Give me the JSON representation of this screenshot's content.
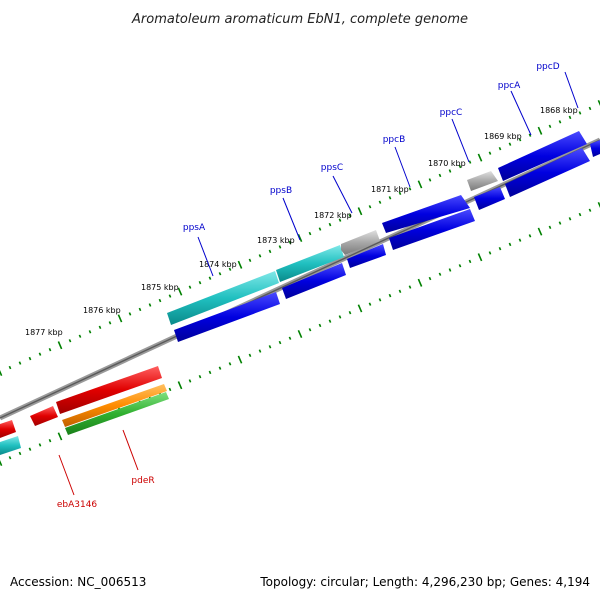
{
  "title": "Aromatoleum aromaticum EbN1, complete genome",
  "footer": {
    "accession": "Accession: NC_006513",
    "summary": "Topology: circular; Length: 4,296,230 bp; Genes: 4,194"
  },
  "ruler": [
    "1877 kbp",
    "1876 kbp",
    "1875 kbp",
    "1874 kbp",
    "1873 kbp",
    "1872 kbp",
    "1871 kbp",
    "1870 kbp",
    "1869 kbp",
    "1868 kbp"
  ],
  "gene_labels": [
    {
      "text": "ppsA",
      "color": "#0000cc"
    },
    {
      "text": "ppsB",
      "color": "#0000cc"
    },
    {
      "text": "ppsC",
      "color": "#0000cc"
    },
    {
      "text": "ppcB",
      "color": "#0000cc"
    },
    {
      "text": "ppcC",
      "color": "#0000cc"
    },
    {
      "text": "ppcA",
      "color": "#0000cc"
    },
    {
      "text": "ppcD",
      "color": "#0000cc"
    },
    {
      "text": "ebA3146",
      "color": "#cc0000"
    },
    {
      "text": "pdeR",
      "color": "#cc0000"
    }
  ],
  "colors": {
    "cds_blue": "#0000e0",
    "cds_cyan": "#20c0c0",
    "cds_grey": "#a8a8a8",
    "cds_red": "#e00000",
    "cds_orange": "#ff8c00",
    "cds_green": "#30b030",
    "backbone": "#808080",
    "tick_green": "#008000",
    "label_blue": "#0000cc",
    "label_red": "#cc0000"
  }
}
